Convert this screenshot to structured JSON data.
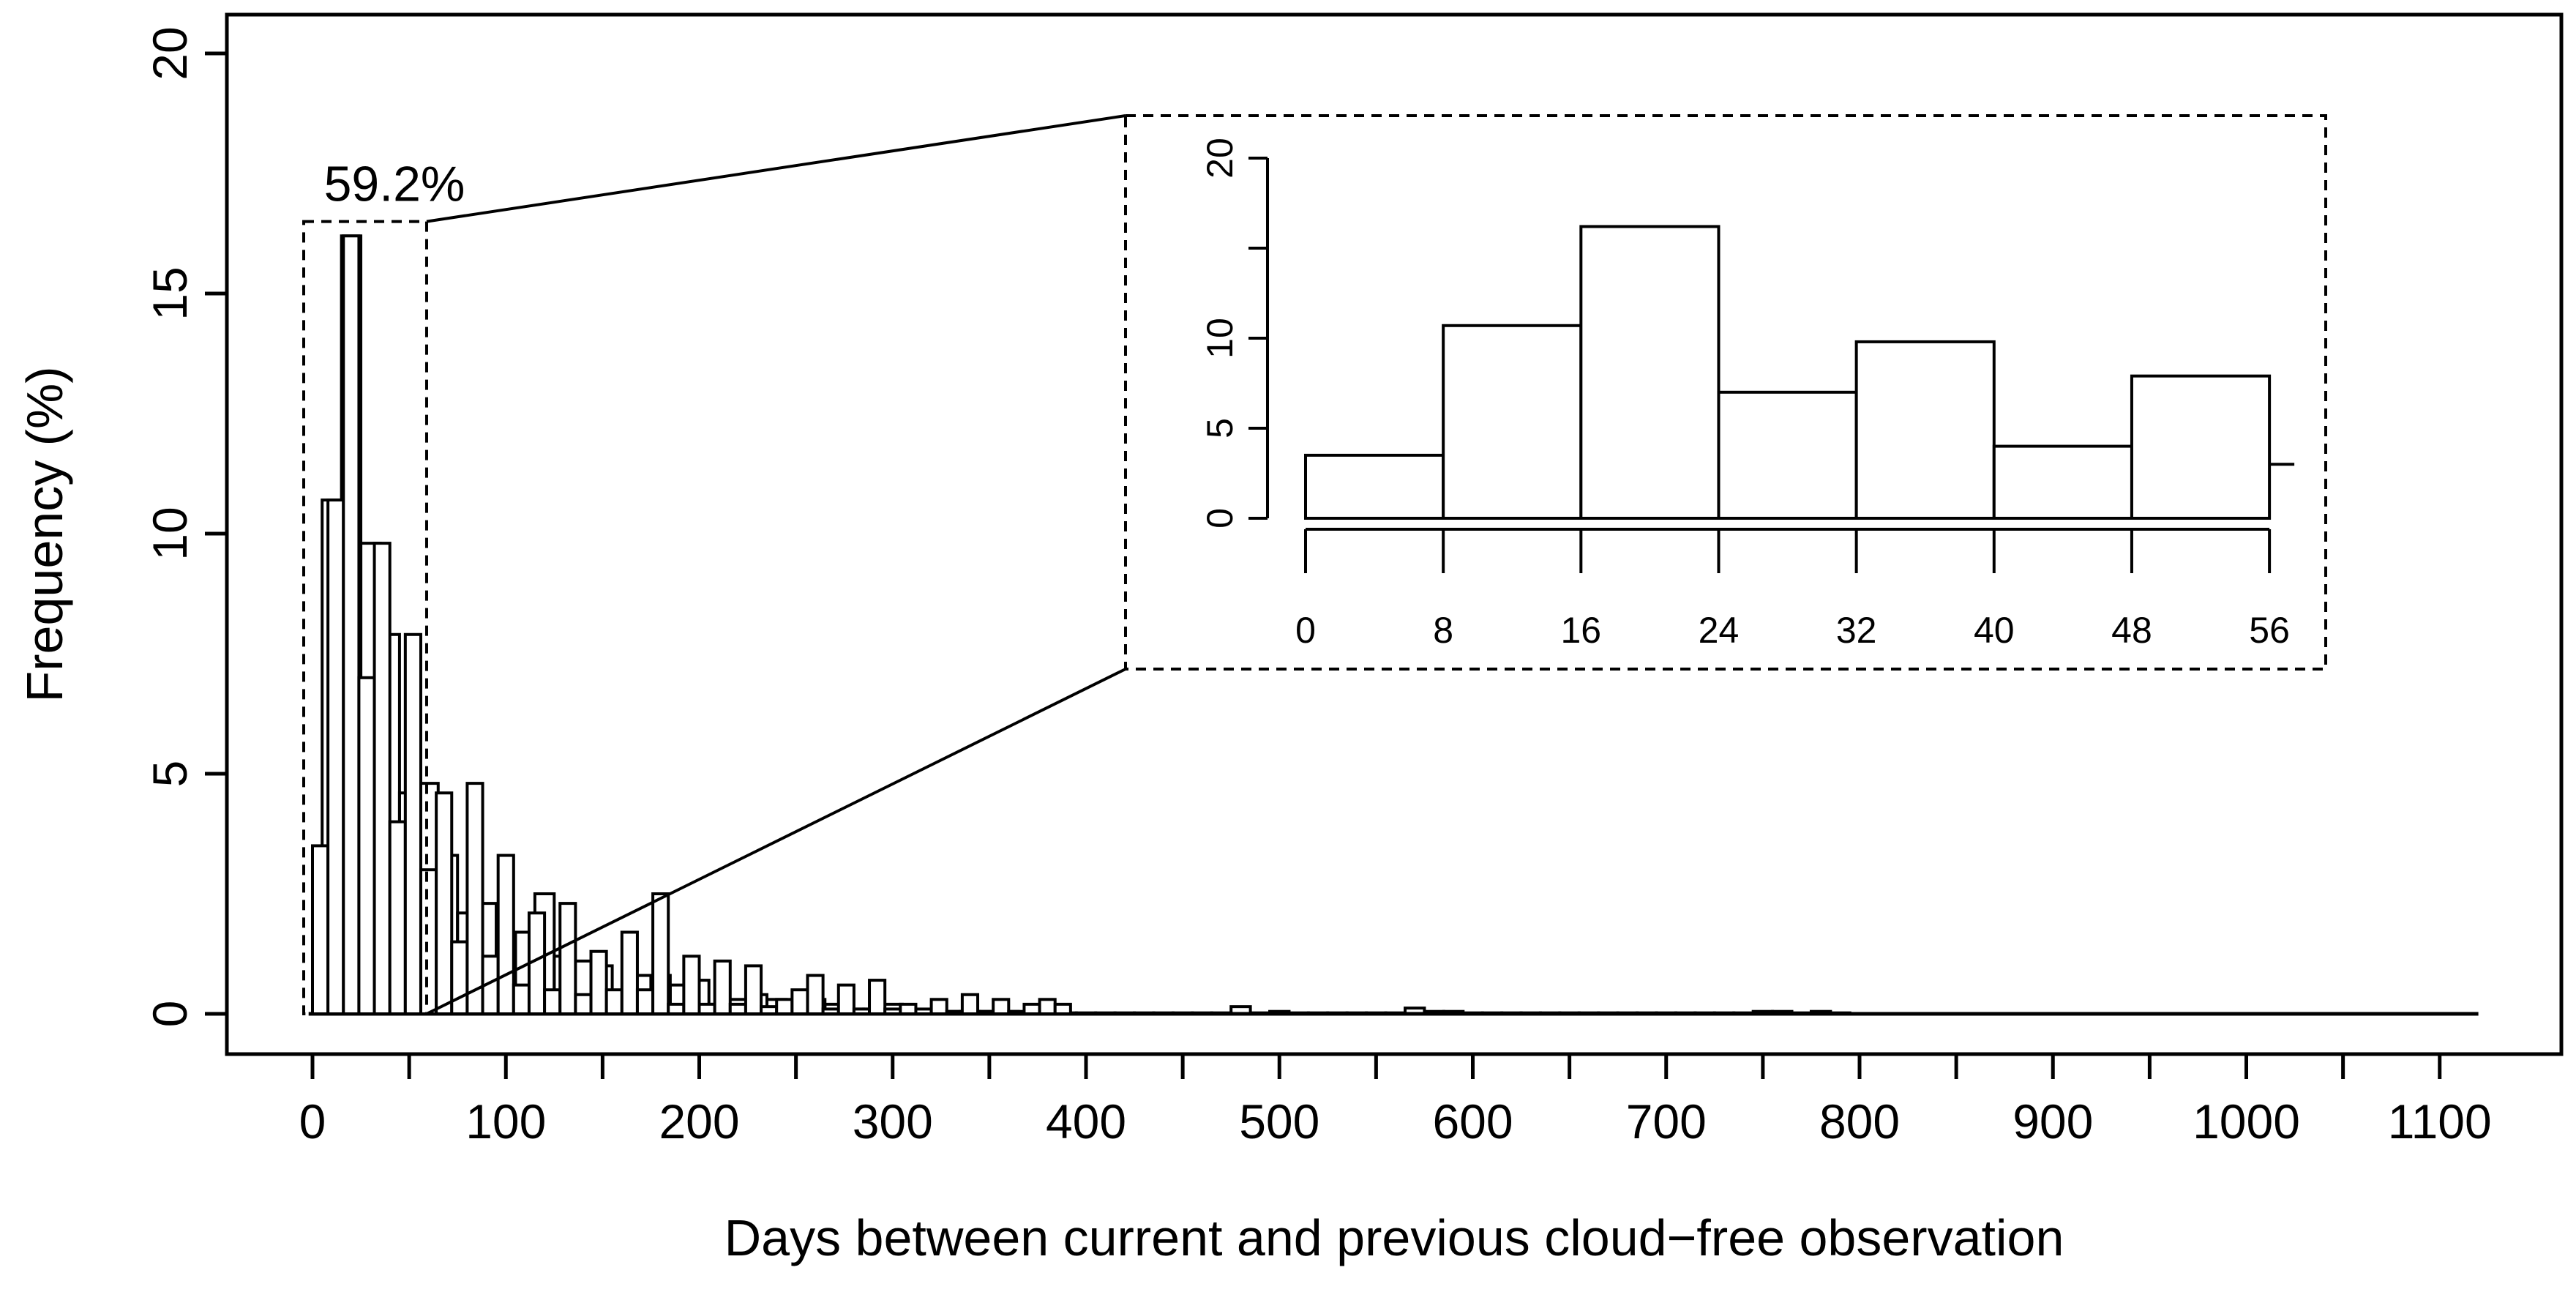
{
  "chart_data": [
    {
      "type": "bar",
      "panel": "main",
      "xlabel": "Days between current and previous cloud−free observation",
      "ylabel": "Frequency (%)",
      "xlim": [
        0,
        1120
      ],
      "ylim": [
        0,
        20
      ],
      "xticks": [
        0,
        100,
        200,
        300,
        400,
        500,
        600,
        700,
        800,
        900,
        1000,
        1100
      ],
      "yticks": [
        0,
        5,
        10,
        15,
        20
      ],
      "x_minor_ticks": [
        50,
        150,
        250,
        350,
        450,
        550,
        650,
        750,
        850,
        950,
        1050
      ],
      "grid": false,
      "legend": "none",
      "bin_width": 10,
      "bin_starts": [
        0,
        10,
        20,
        30,
        40,
        50,
        60,
        70,
        80,
        90,
        100,
        110,
        120,
        130,
        140,
        150,
        160,
        170,
        180,
        190,
        200,
        210,
        220,
        230,
        240,
        250,
        260,
        270,
        280,
        290,
        300,
        310,
        320,
        330,
        340,
        350,
        360,
        370,
        380,
        390,
        400,
        410,
        420,
        430,
        440,
        450,
        460,
        470,
        480,
        490,
        500,
        510,
        520,
        530,
        540,
        550,
        560,
        570,
        580,
        590,
        600,
        610,
        620,
        630,
        640,
        650,
        660,
        670,
        680,
        690,
        700,
        710,
        720,
        730,
        740,
        750,
        760,
        770,
        780
      ],
      "values": [
        10.7,
        16.2,
        9.8,
        7.9,
        4.6,
        4.8,
        3.3,
        2.1,
        2.3,
        1.3,
        1.7,
        2.5,
        1.2,
        1.1,
        1.0,
        0.3,
        0.8,
        0.8,
        0.6,
        0.7,
        0.2,
        0.3,
        0.4,
        0.3,
        0.2,
        0.3,
        0.2,
        0.1,
        0.1,
        0.2,
        0.05,
        0.05,
        0.05,
        0.05,
        0.05,
        0.05,
        0.02,
        0.02,
        0.02,
        0.02,
        0.02,
        0.02,
        0.02,
        0.02,
        0.02,
        0.02,
        0.02,
        0.15,
        0.02,
        0.05,
        0.02,
        0.02,
        0.02,
        0.02,
        0.02,
        0.02,
        0.12,
        0.05,
        0.05,
        0.02,
        0.02,
        0.02,
        0.02,
        0.02,
        0.02,
        0.02,
        0.02,
        0.02,
        0.02,
        0.02,
        0.02,
        0.02,
        0.02,
        0.02,
        0.05,
        0.05,
        0.02,
        0.05,
        0.02
      ],
      "overlay_bin_width": 8,
      "overlay_bin_starts": [
        0,
        8,
        16,
        24,
        32,
        40,
        48,
        56,
        64,
        72,
        80,
        88,
        96,
        104,
        112,
        120,
        128,
        136,
        144,
        152,
        160,
        168,
        176,
        184,
        192,
        200,
        208,
        216,
        224,
        232,
        240,
        248,
        256,
        264,
        272,
        280,
        288,
        296,
        304,
        312,
        320,
        328,
        336,
        344,
        352,
        360,
        368,
        376,
        384
      ],
      "overlay_values": [
        3.5,
        10.7,
        16.2,
        7.0,
        9.8,
        4.0,
        7.9,
        3.0,
        4.6,
        1.5,
        4.8,
        1.2,
        3.3,
        0.6,
        2.1,
        0.5,
        2.3,
        0.4,
        1.3,
        0.5,
        1.7,
        0.5,
        2.5,
        0.2,
        1.2,
        0.2,
        1.1,
        0.2,
        1.0,
        0.15,
        0.3,
        0.5,
        0.8,
        0.1,
        0.6,
        0.1,
        0.7,
        0.1,
        0.2,
        0.1,
        0.3,
        0.05,
        0.4,
        0.05,
        0.3,
        0.05,
        0.2,
        0.3,
        0.2
      ],
      "zoom_box": {
        "x": [
          0,
          56
        ],
        "y": [
          0,
          16.5
        ],
        "label": "59.2%"
      }
    },
    {
      "type": "bar",
      "panel": "inset",
      "xlabel": "",
      "ylabel": "",
      "xlim": [
        0,
        56
      ],
      "ylim": [
        0,
        20
      ],
      "xticks": [
        0,
        8,
        16,
        24,
        32,
        40,
        48,
        56
      ],
      "yticks": [
        0,
        5,
        10,
        15,
        20
      ],
      "ytick_labels": [
        "0",
        "5",
        "10",
        "",
        "20"
      ],
      "grid": false,
      "legend": "none",
      "bin_starts": [
        0,
        8,
        16,
        24,
        32,
        40,
        48
      ],
      "bin_width": 8,
      "values": [
        3.5,
        10.7,
        16.2,
        7.0,
        9.8,
        4.0,
        7.9
      ],
      "tail_value": 3.0
    }
  ]
}
